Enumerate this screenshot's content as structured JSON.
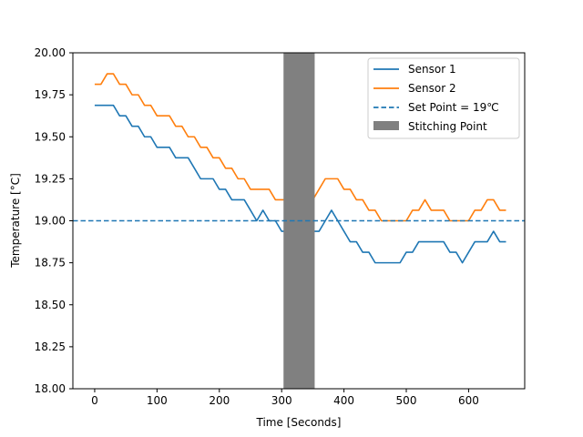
{
  "chart_data": {
    "type": "line",
    "xlabel": "Time [Seconds]",
    "ylabel": "Temperature [°C]",
    "xlim": [
      -35,
      690
    ],
    "ylim": [
      18.0,
      20.0
    ],
    "xticks": [
      0,
      100,
      200,
      300,
      400,
      500,
      600
    ],
    "xtick_labels": [
      "0",
      "100",
      "200",
      "300",
      "400",
      "500",
      "600"
    ],
    "yticks": [
      18.0,
      18.25,
      18.5,
      18.75,
      19.0,
      19.25,
      19.5,
      19.75,
      20.0
    ],
    "ytick_labels": [
      "18.00",
      "18.25",
      "18.50",
      "18.75",
      "19.00",
      "19.25",
      "19.50",
      "19.75",
      "20.00"
    ],
    "grid": false,
    "legend_position": "top-right",
    "series": [
      {
        "name": "Sensor 1",
        "color": "#1f77b4",
        "style": "solid",
        "x": [
          0,
          10,
          20,
          30,
          40,
          50,
          60,
          70,
          80,
          90,
          100,
          110,
          120,
          130,
          140,
          150,
          160,
          170,
          180,
          190,
          200,
          210,
          220,
          230,
          240,
          250,
          260,
          270,
          280,
          290,
          300,
          310,
          320,
          330,
          340,
          350,
          360,
          370,
          380,
          390,
          400,
          410,
          420,
          430,
          440,
          450,
          460,
          470,
          480,
          490,
          500,
          510,
          520,
          530,
          540,
          550,
          560,
          570,
          580,
          590,
          600,
          610,
          620,
          630,
          640,
          650,
          660
        ],
        "y": [
          19.6875,
          19.6875,
          19.6875,
          19.6875,
          19.625,
          19.625,
          19.5625,
          19.5625,
          19.5,
          19.5,
          19.4375,
          19.4375,
          19.4375,
          19.375,
          19.375,
          19.375,
          19.3125,
          19.25,
          19.25,
          19.25,
          19.1875,
          19.1875,
          19.125,
          19.125,
          19.125,
          19.0625,
          19.0,
          19.0625,
          19.0,
          19.0,
          18.9375,
          18.9375,
          18.9375,
          18.9375,
          18.9375,
          18.9375,
          18.9375,
          19.0,
          19.0625,
          19.0,
          18.9375,
          18.875,
          18.875,
          18.8125,
          18.8125,
          18.75,
          18.75,
          18.75,
          18.75,
          18.75,
          18.8125,
          18.8125,
          18.875,
          18.875,
          18.875,
          18.875,
          18.875,
          18.8125,
          18.8125,
          18.75,
          18.8125,
          18.875,
          18.875,
          18.875,
          18.9375,
          18.875,
          18.875
        ]
      },
      {
        "name": "Sensor 2",
        "color": "#ff7f0e",
        "style": "solid",
        "x": [
          0,
          10,
          20,
          30,
          40,
          50,
          60,
          70,
          80,
          90,
          100,
          110,
          120,
          130,
          140,
          150,
          160,
          170,
          180,
          190,
          200,
          210,
          220,
          230,
          240,
          250,
          260,
          270,
          280,
          290,
          300,
          310,
          320,
          330,
          340,
          350,
          360,
          370,
          380,
          390,
          400,
          410,
          420,
          430,
          440,
          450,
          460,
          470,
          480,
          490,
          500,
          510,
          520,
          530,
          540,
          550,
          560,
          570,
          580,
          590,
          600,
          610,
          620,
          630,
          640,
          650,
          660
        ],
        "y": [
          19.8125,
          19.8125,
          19.875,
          19.875,
          19.8125,
          19.8125,
          19.75,
          19.75,
          19.6875,
          19.6875,
          19.625,
          19.625,
          19.625,
          19.5625,
          19.5625,
          19.5,
          19.5,
          19.4375,
          19.4375,
          19.375,
          19.375,
          19.3125,
          19.3125,
          19.25,
          19.25,
          19.1875,
          19.1875,
          19.1875,
          19.1875,
          19.125,
          19.125,
          19.125,
          19.125,
          19.125,
          19.125,
          19.125,
          19.1875,
          19.25,
          19.25,
          19.25,
          19.1875,
          19.1875,
          19.125,
          19.125,
          19.0625,
          19.0625,
          19.0,
          19.0,
          19.0,
          19.0,
          19.0,
          19.0625,
          19.0625,
          19.125,
          19.0625,
          19.0625,
          19.0625,
          19.0,
          19.0,
          19.0,
          19.0,
          19.0625,
          19.0625,
          19.125,
          19.125,
          19.0625,
          19.0625
        ]
      }
    ],
    "set_point": {
      "name": "Set Point = 19℃",
      "value": 19.0,
      "color": "#1f77b4",
      "style": "dashed"
    },
    "stitching_region": {
      "name": "Stitching Point",
      "x_start": 303,
      "x_end": 353,
      "color": "#808080"
    }
  }
}
